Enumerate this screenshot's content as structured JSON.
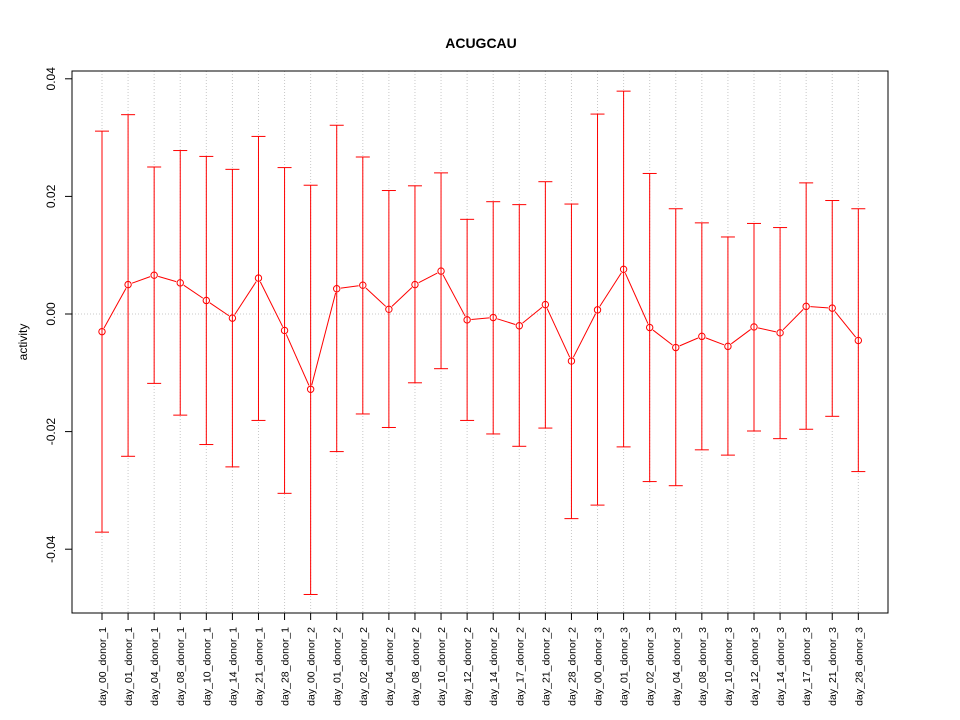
{
  "chart_data": {
    "type": "line",
    "title": "ACUGCAU",
    "xlabel": "",
    "ylabel": "activity",
    "ylim": [
      -0.05,
      0.042
    ],
    "yticks": [
      -0.04,
      -0.02,
      0.0,
      0.02,
      0.04
    ],
    "ytick_labels": [
      "-0.04",
      "-0.02",
      "0.00",
      "0.02",
      "0.04"
    ],
    "grid": true,
    "series_color": "#ff0000",
    "categories": [
      "day_00_donor_1",
      "day_01_donor_1",
      "day_04_donor_1",
      "day_08_donor_1",
      "day_10_donor_1",
      "day_14_donor_1",
      "day_21_donor_1",
      "day_28_donor_1",
      "day_00_donor_2",
      "day_01_donor_2",
      "day_02_donor_2",
      "day_04_donor_2",
      "day_08_donor_2",
      "day_10_donor_2",
      "day_12_donor_2",
      "day_14_donor_2",
      "day_17_donor_2",
      "day_21_donor_2",
      "day_28_donor_2",
      "day_00_donor_3",
      "day_01_donor_3",
      "day_02_donor_3",
      "day_04_donor_3",
      "day_08_donor_3",
      "day_10_donor_3",
      "day_12_donor_3",
      "day_14_donor_3",
      "day_17_donor_3",
      "day_21_donor_3",
      "day_28_donor_3"
    ],
    "series": [
      {
        "values": [
          -0.003,
          0.005,
          0.0066,
          0.0053,
          0.0023,
          -0.0007,
          0.0061,
          -0.0028,
          -0.0128,
          0.0043,
          0.0049,
          0.0008,
          0.005,
          0.0073,
          -0.001,
          -0.0006,
          -0.002,
          0.0016,
          -0.008,
          0.0007,
          0.0076,
          -0.0023,
          -0.0057,
          -0.0038,
          -0.0055,
          -0.0022,
          -0.0032,
          0.0013,
          0.001,
          -0.0045
        ],
        "upper": [
          0.0311,
          0.0339,
          0.025,
          0.0278,
          0.0268,
          0.0246,
          0.0302,
          0.0249,
          0.0219,
          0.0321,
          0.0267,
          0.021,
          0.0218,
          0.024,
          0.0161,
          0.0191,
          0.0186,
          0.0225,
          0.0187,
          0.034,
          0.0379,
          0.0239,
          0.0179,
          0.0155,
          0.0131,
          0.0154,
          0.0147,
          0.0223,
          0.0193,
          0.0179
        ],
        "lower": [
          -0.0371,
          -0.0242,
          -0.0118,
          -0.0172,
          -0.0222,
          -0.026,
          -0.0181,
          -0.0305,
          -0.0477,
          -0.0234,
          -0.017,
          -0.0193,
          -0.0117,
          -0.0093,
          -0.0181,
          -0.0204,
          -0.0225,
          -0.0194,
          -0.0348,
          -0.0325,
          -0.0226,
          -0.0285,
          -0.0292,
          -0.0231,
          -0.024,
          -0.0199,
          -0.0212,
          -0.0196,
          -0.0174,
          -0.0268
        ]
      }
    ]
  }
}
